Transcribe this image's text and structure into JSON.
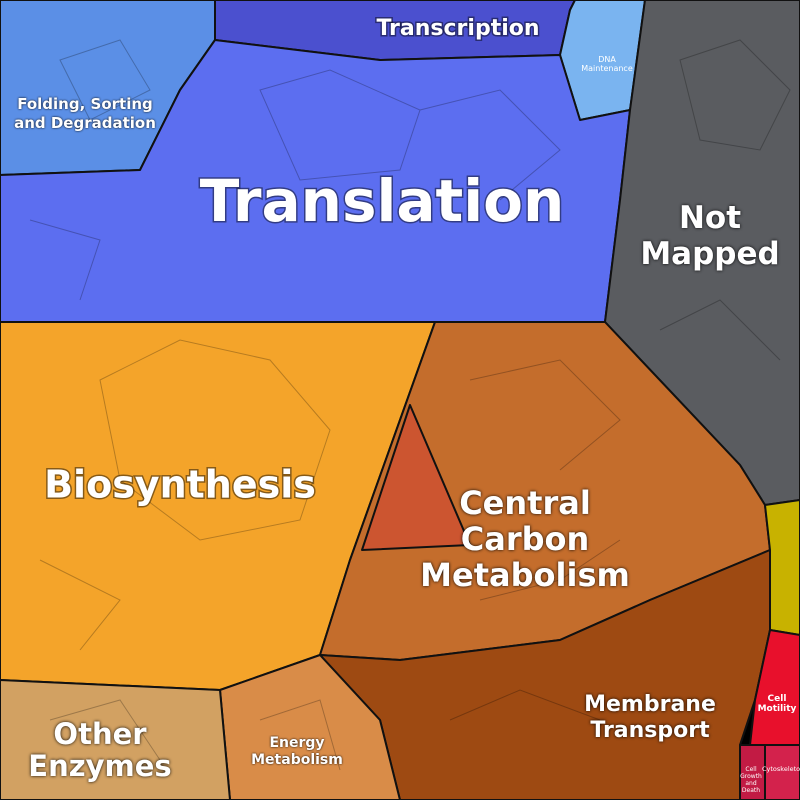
{
  "regions": [
    {
      "label": "Translation"
    },
    {
      "label": "Transcription"
    },
    {
      "label": "Folding, Sorting and Degradation"
    },
    {
      "label": "DNA Maintenance"
    },
    {
      "label": "Not Mapped"
    },
    {
      "label": "Biosynthesis"
    },
    {
      "label": "Central Carbon Metabolism"
    },
    {
      "label": "Membrane Transport"
    },
    {
      "label": "Other Enzymes"
    },
    {
      "label": "Energy Metabolism"
    },
    {
      "label": "Cell Motility"
    },
    {
      "label": "Cell Growth and Death"
    },
    {
      "label": "Cytoskeleton"
    }
  ]
}
